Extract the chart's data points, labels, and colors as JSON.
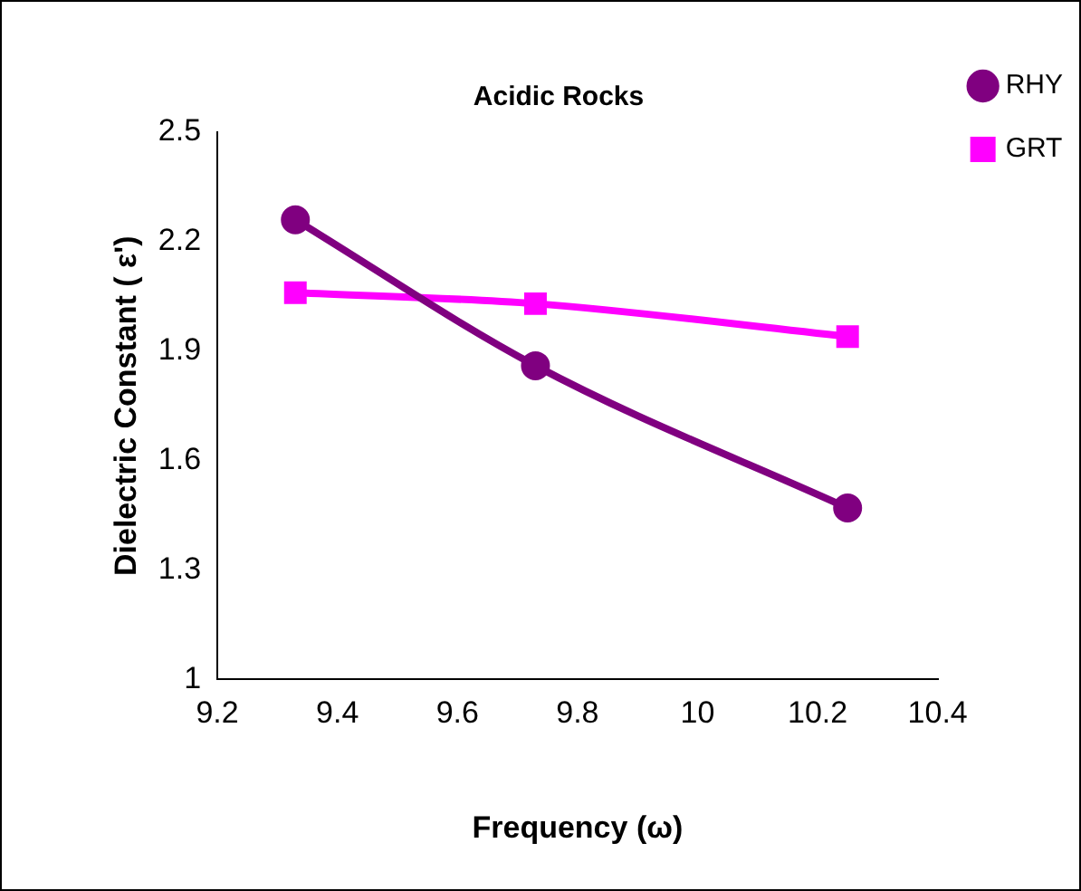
{
  "chart_data": {
    "type": "line",
    "title": "Acidic Rocks",
    "xlabel": "Frequency (ω)",
    "ylabel": "Dielectric Constant ( ε')",
    "xlim": [
      9.2,
      10.4
    ],
    "xticks": [
      9.2,
      9.4,
      9.6,
      9.8,
      10,
      10.2,
      10.4
    ],
    "ylim": [
      1,
      2.5
    ],
    "yticks": [
      1,
      1.3,
      1.6,
      1.9,
      2.2,
      2.5
    ],
    "grid": false,
    "legend": "top right",
    "series": [
      {
        "name": "RHY",
        "color": "#800080",
        "marker": "circle",
        "x": [
          9.33,
          9.73,
          10.25
        ],
        "values": [
          2.26,
          1.86,
          1.47
        ]
      },
      {
        "name": "GRT",
        "color": "#ff00ff",
        "marker": "square",
        "x": [
          9.33,
          9.73,
          10.25
        ],
        "values": [
          2.06,
          2.03,
          1.94
        ]
      }
    ]
  }
}
